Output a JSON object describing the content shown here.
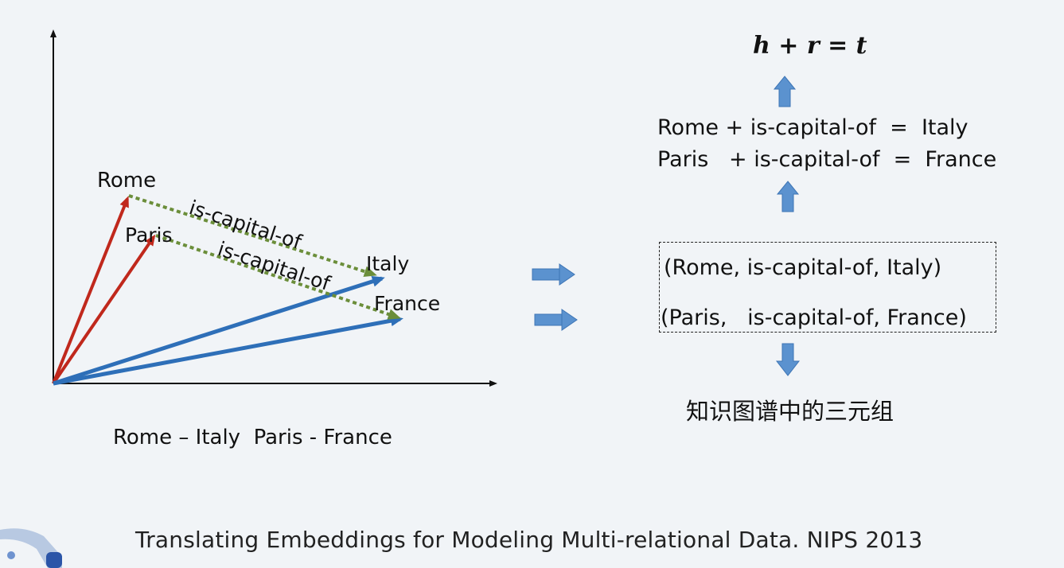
{
  "diagram": {
    "point_labels": {
      "rome": "Rome",
      "paris": "Paris",
      "italy": "Italy",
      "france": "France"
    },
    "relation_labels": [
      "is-capital-of",
      "is-capital-of"
    ],
    "caption": "Rome – Italy  Paris - France"
  },
  "formula": "h + r = t",
  "equations": [
    "Rome + is-capital-of  =  Italy",
    "Paris   + is-capital-of  =  France"
  ],
  "triples": [
    "(Rome, is-capital-of, Italy)",
    "(Paris,   is-capital-of, France)"
  ],
  "kg_caption": "知识图谱中的三元组",
  "citation": "Translating Embeddings for Modeling Multi-relational Data. NIPS 2013",
  "colors": {
    "capital_vector": "#c0281c",
    "country_vector": "#2e6fb8",
    "relation_vector": "#6b8e3a",
    "flow_arrow": "#5b92cf",
    "background": "#f1f4f7"
  }
}
